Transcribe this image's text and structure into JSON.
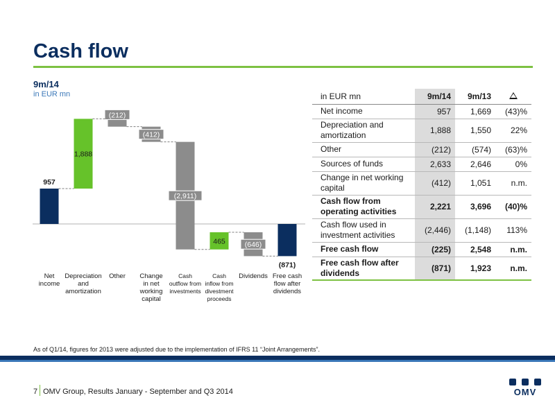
{
  "title": "Cash flow",
  "subtitle": {
    "period": "9m/14",
    "unit": "in EUR mn"
  },
  "colors": {
    "navy": "#0b2e5f",
    "green": "#66c22a",
    "grey": "#8c8c8c",
    "accent_green": "#7dc142",
    "label_blue": "#3a77b8"
  },
  "chart_data": {
    "type": "bar",
    "subtype": "waterfall",
    "categories": [
      "Net income",
      "Depreciation and amortization",
      "Other",
      "Change in net working capital",
      "Cash outflow from investments",
      "Cash inflow from divestment proceeds",
      "Dividends",
      "Free cash flow after dividends"
    ],
    "category_lines": [
      [
        "Net",
        "income"
      ],
      [
        "Depreciation",
        "and",
        "amortization"
      ],
      [
        "Other"
      ],
      [
        "Change",
        "in net",
        "working",
        "capital"
      ],
      [
        "Cash",
        "outflow from",
        "investments"
      ],
      [
        "Cash",
        "inflow from",
        "divestment",
        "proceeds"
      ],
      [
        "Dividends"
      ],
      [
        "Free cash",
        "flow after",
        "dividends"
      ]
    ],
    "values": [
      957,
      1888,
      -212,
      -412,
      -2911,
      465,
      -646,
      -871
    ],
    "labels": [
      "957",
      "1,888",
      "(212)",
      "(412)",
      "(2,911)",
      "465",
      "(646)",
      "(871)"
    ],
    "kinds": [
      "total",
      "increase",
      "decrease",
      "decrease",
      "decrease",
      "increase",
      "decrease",
      "total"
    ]
  },
  "table": {
    "header": {
      "label": "in EUR mn",
      "col1": "9m/14",
      "col2": "9m/13",
      "col3_icon": "delta-triangle-icon"
    },
    "rows": [
      {
        "label": "Net income",
        "v1": "957",
        "v2": "1,669",
        "v3": "(43)%",
        "bold": false
      },
      {
        "label": "Depreciation and amortization",
        "v1": "1,888",
        "v2": "1,550",
        "v3": "22%",
        "bold": false
      },
      {
        "label": "Other",
        "v1": "(212)",
        "v2": "(574)",
        "v3": "(63)%",
        "bold": false
      },
      {
        "label": "Sources of funds",
        "v1": "2,633",
        "v2": "2,646",
        "v3": "0%",
        "bold": false
      },
      {
        "label": "Change in net working capital",
        "v1": "(412)",
        "v2": "1,051",
        "v3": "n.m.",
        "bold": false
      },
      {
        "label": "Cash flow from operating activities",
        "v1": "2,221",
        "v2": "3,696",
        "v3": "(40)%",
        "bold": true
      },
      {
        "label": "Cash flow used in investment activities",
        "v1": "(2,446)",
        "v2": "(1,148)",
        "v3": "113%",
        "bold": false
      },
      {
        "label": "Free cash flow",
        "v1": "(225)",
        "v2": "2,548",
        "v3": "n.m.",
        "bold": true
      },
      {
        "label": "Free cash flow after dividends",
        "v1": "(871)",
        "v2": "1,923",
        "v3": "n.m.",
        "bold": true
      }
    ]
  },
  "footnote": "As of Q1/14, figures for 2013 were adjusted due to the implementation of IFRS 11 “Joint Arrangements”.",
  "footer": {
    "page": "7",
    "text": "OMV Group, Results January - September and Q3 2014",
    "logo_text": "OMV"
  }
}
